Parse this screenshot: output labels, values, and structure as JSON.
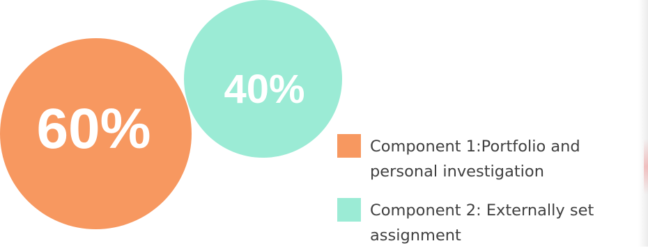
{
  "components": [
    {
      "percent": "60%",
      "legend": "Component 1:Portfolio and personal investigation",
      "color": "#F79860"
    },
    {
      "percent": "40%",
      "legend": "Component 2: Externally set assignment",
      "color": "#9BEBD5"
    }
  ]
}
